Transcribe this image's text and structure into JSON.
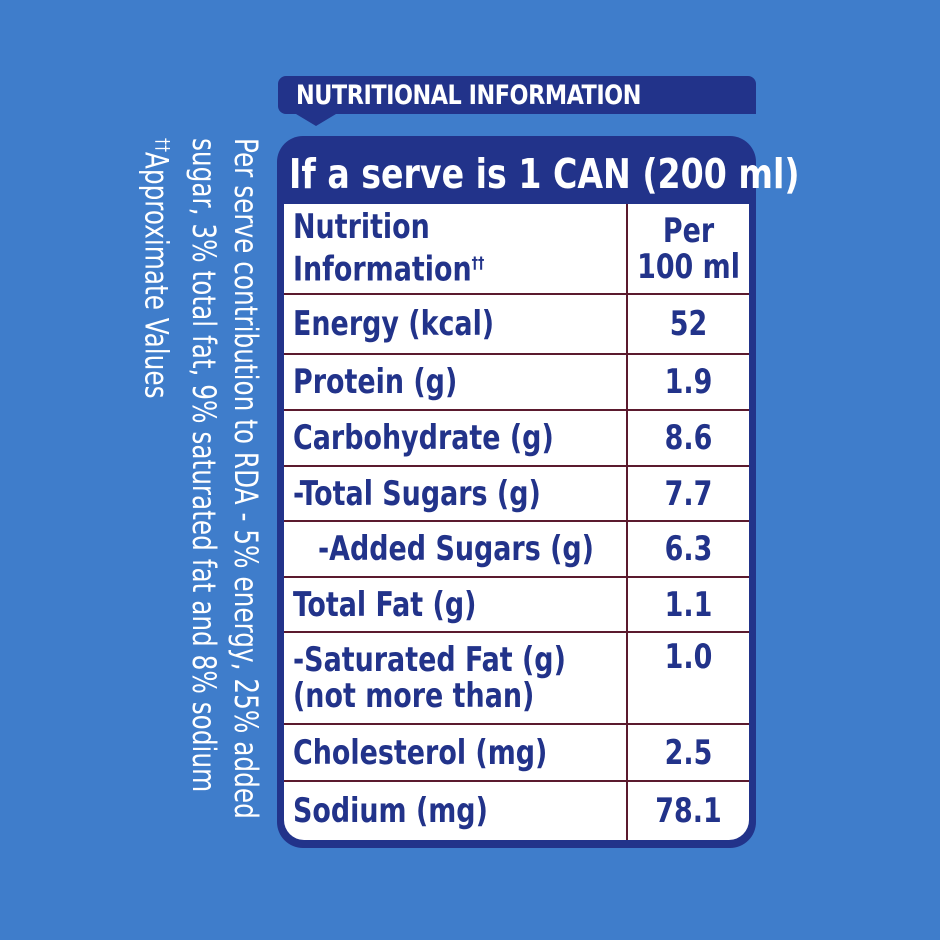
{
  "tag_title": "NUTRITIONAL INFORMATION",
  "serve_header": "If a serve is 1 CAN (200 ml)",
  "table": {
    "header": {
      "label_line1": "Nutrition",
      "label_line2": "Information",
      "label_mark": "††",
      "value_line1": "Per",
      "value_line2": "100 ml"
    },
    "rows": [
      {
        "label": "Energy (kcal)",
        "value": "52"
      },
      {
        "label": "Protein (g)",
        "value": "1.9"
      },
      {
        "label": "Carbohydrate (g)",
        "value": "8.6"
      },
      {
        "label": "-Total Sugars (g)",
        "value": "7.7"
      },
      {
        "label": "-Added Sugars (g)",
        "value": "6.3"
      },
      {
        "label": "Total Fat (g)",
        "value": "1.1"
      },
      {
        "label": "-Saturated Fat (g)",
        "label_line2": "(not more than)",
        "value": "1.0"
      },
      {
        "label": "Cholesterol (mg)",
        "value": "2.5"
      },
      {
        "label": "Sodium (mg)",
        "value": "78.1"
      }
    ]
  },
  "side_note": {
    "line1": "Per serve contribution to RDA - 5% energy, 25% added",
    "line2": "sugar, 3% total fat,  9% saturated fat and 8% sodium",
    "line3_mark": "††",
    "line3": "Approximate Values"
  },
  "colors": {
    "background": "#3f7dcb",
    "navy": "#22338a",
    "divider": "#5b1a2e",
    "white": "#ffffff"
  }
}
